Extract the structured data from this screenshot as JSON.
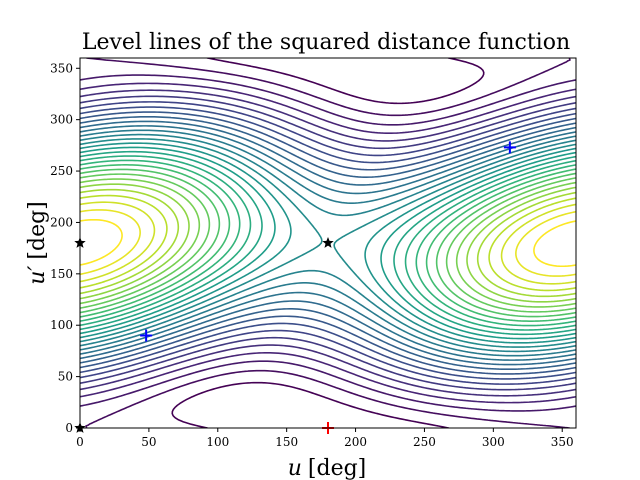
{
  "chart_data": {
    "type": "contour",
    "title": "Level lines of the squared distance function",
    "xlabel_var": "u",
    "xlabel_unit": "[deg]",
    "ylabel_var": "u′",
    "ylabel_unit": "[deg]",
    "xlim": [
      0,
      360
    ],
    "ylim": [
      0,
      360
    ],
    "x_ticks": [
      0,
      50,
      100,
      150,
      200,
      250,
      300,
      350
    ],
    "y_ticks": [
      0,
      50,
      100,
      150,
      200,
      250,
      300,
      350
    ],
    "grid": false,
    "legend": "none",
    "colormap": "viridis",
    "level_count": 30,
    "markers": [
      {
        "name": "minimum-plus",
        "x": 48,
        "y": 90,
        "symbol": "plus",
        "color": "#0000ff"
      },
      {
        "name": "minimum-plus",
        "x": 312,
        "y": 273,
        "symbol": "plus",
        "color": "#0000ff"
      },
      {
        "name": "maximum-plus",
        "x": 180,
        "y": 0,
        "symbol": "plus",
        "color": "#ff0000"
      },
      {
        "name": "saddle-star",
        "x": 180,
        "y": 180,
        "symbol": "star",
        "color": "#000000"
      },
      {
        "name": "saddle-star",
        "x": 0,
        "y": 180,
        "symbol": "star",
        "color": "#000000"
      },
      {
        "name": "saddle-star",
        "x": 0,
        "y": 0,
        "symbol": "star",
        "color": "#000000"
      }
    ]
  }
}
